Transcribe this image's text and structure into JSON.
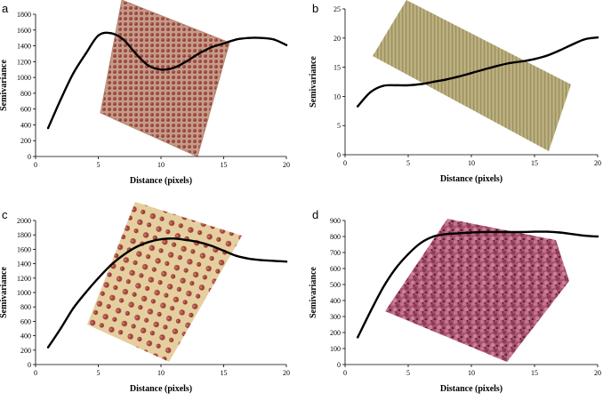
{
  "chart_data": [
    {
      "panel": "a",
      "type": "line",
      "xlabel": "Distance (pixels)",
      "ylabel": "Semivariance",
      "xlim": [
        0,
        20
      ],
      "ylim": [
        0,
        1800
      ],
      "xticks": [
        0,
        5,
        10,
        15,
        20
      ],
      "yticks": [
        0,
        200,
        400,
        600,
        800,
        1000,
        1200,
        1400,
        1600,
        1800
      ],
      "x": [
        1,
        2,
        3,
        4,
        5,
        6,
        7,
        8,
        9,
        10,
        11,
        12,
        13,
        14,
        15,
        16,
        17,
        18,
        19,
        20
      ],
      "y": [
        360,
        720,
        1050,
        1300,
        1530,
        1560,
        1480,
        1300,
        1150,
        1100,
        1120,
        1200,
        1300,
        1380,
        1430,
        1480,
        1500,
        1500,
        1480,
        1410
      ],
      "texture": "orchard-grid"
    },
    {
      "panel": "b",
      "type": "line",
      "xlabel": "Distance (pixels)",
      "ylabel": "Semivariance",
      "xlim": [
        0,
        20
      ],
      "ylim": [
        0,
        25
      ],
      "xticks": [
        0,
        5,
        10,
        15,
        20
      ],
      "yticks": [
        0,
        5,
        10,
        15,
        20,
        25
      ],
      "x": [
        1,
        2,
        3,
        4,
        5,
        6,
        7,
        8,
        9,
        10,
        11,
        12,
        13,
        14,
        15,
        16,
        17,
        18,
        19,
        20
      ],
      "y": [
        8.3,
        10.7,
        11.8,
        11.9,
        11.9,
        12.1,
        12.5,
        12.9,
        13.4,
        14.0,
        14.6,
        15.2,
        15.7,
        16.0,
        16.4,
        17.0,
        17.9,
        18.9,
        19.8,
        20.1
      ],
      "texture": "row-crop"
    },
    {
      "panel": "c",
      "type": "line",
      "xlabel": "Distance (pixels)",
      "ylabel": "Semivariance",
      "xlim": [
        0,
        20
      ],
      "ylim": [
        0,
        2000
      ],
      "xticks": [
        0,
        5,
        10,
        15,
        20
      ],
      "yticks": [
        0,
        200,
        400,
        600,
        800,
        1000,
        1200,
        1400,
        1600,
        1800,
        2000
      ],
      "x": [
        1,
        2,
        3,
        4,
        5,
        6,
        7,
        8,
        9,
        10,
        11,
        12,
        13,
        14,
        15,
        16,
        17,
        18,
        19,
        20
      ],
      "y": [
        240,
        500,
        780,
        1000,
        1200,
        1380,
        1520,
        1630,
        1700,
        1740,
        1750,
        1730,
        1700,
        1650,
        1580,
        1510,
        1470,
        1450,
        1440,
        1430
      ],
      "texture": "sparse-trees"
    },
    {
      "panel": "d",
      "type": "line",
      "xlabel": "Distance (pixels)",
      "ylabel": "Semivariance",
      "xlim": [
        0,
        20
      ],
      "ylim": [
        0,
        900
      ],
      "xticks": [
        0,
        5,
        10,
        15,
        20
      ],
      "yticks": [
        0,
        100,
        200,
        300,
        400,
        500,
        600,
        700,
        800,
        900
      ],
      "x": [
        1,
        2,
        3,
        4,
        5,
        6,
        7,
        8,
        9,
        10,
        11,
        12,
        13,
        14,
        15,
        16,
        17,
        18,
        19,
        20
      ],
      "y": [
        170,
        330,
        480,
        600,
        690,
        760,
        800,
        815,
        820,
        825,
        828,
        828,
        828,
        828,
        830,
        830,
        825,
        815,
        805,
        800
      ],
      "texture": "dense-canopy"
    }
  ]
}
